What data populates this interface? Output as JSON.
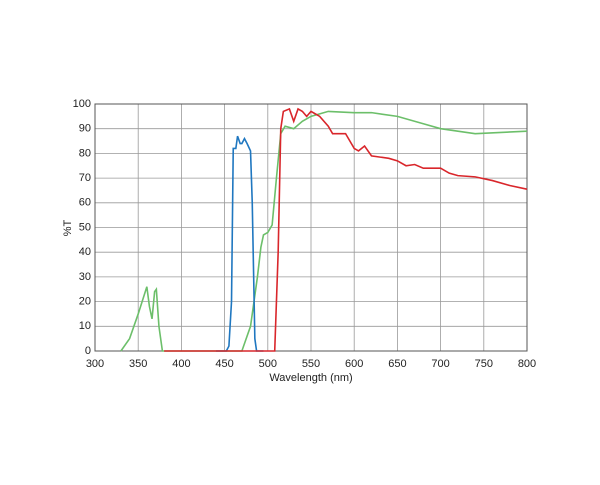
{
  "chart_data": {
    "type": "line",
    "x_label": "Wavelength (nm)",
    "y_label": "%T",
    "xlim": [
      300,
      800
    ],
    "xticks": [
      300,
      350,
      400,
      450,
      500,
      550,
      600,
      650,
      700,
      750,
      800
    ],
    "ylim": [
      0,
      100
    ],
    "yticks": [
      0,
      10,
      20,
      30,
      40,
      50,
      60,
      70,
      80,
      90,
      100
    ],
    "grid": true,
    "series": [
      {
        "color": "#6cbf6a",
        "x": [
          330,
          340,
          350,
          360,
          363,
          366,
          369,
          371,
          374,
          378,
          470,
          480,
          488,
          492,
          495,
          500,
          505,
          510,
          515,
          520,
          530,
          540,
          550,
          570,
          600,
          620,
          650,
          680,
          700,
          740,
          770,
          800
        ],
        "values": [
          0,
          5,
          15,
          26,
          18,
          13,
          24,
          25,
          10,
          0,
          0,
          10,
          30,
          42,
          47,
          48,
          51,
          70,
          88,
          91,
          90,
          93,
          95,
          97,
          96.5,
          96.5,
          95,
          92,
          90,
          88,
          88.5,
          89
        ]
      },
      {
        "color": "#1f77c0",
        "x": [
          440,
          452,
          455,
          458,
          460,
          463,
          465,
          468,
          470,
          473,
          476,
          480,
          482,
          485,
          487,
          495
        ],
        "values": [
          0,
          0,
          2,
          20,
          82,
          82,
          87,
          84,
          84,
          86,
          84,
          81,
          60,
          5,
          0,
          0
        ]
      },
      {
        "color": "#d9262b",
        "x": [
          380,
          508,
          512,
          515,
          518,
          525,
          530,
          535,
          540,
          545,
          550,
          555,
          560,
          570,
          575,
          590,
          600,
          605,
          612,
          620,
          640,
          650,
          660,
          670,
          680,
          700,
          710,
          720,
          740,
          760,
          780,
          800
        ],
        "values": [
          0,
          0,
          40,
          90,
          97,
          98,
          93,
          98,
          97,
          95,
          97,
          96,
          95,
          91,
          88,
          88,
          82,
          81,
          83,
          79,
          78,
          77,
          75,
          75.5,
          74,
          74,
          72,
          71,
          70.5,
          69,
          67,
          65.5
        ]
      }
    ]
  }
}
